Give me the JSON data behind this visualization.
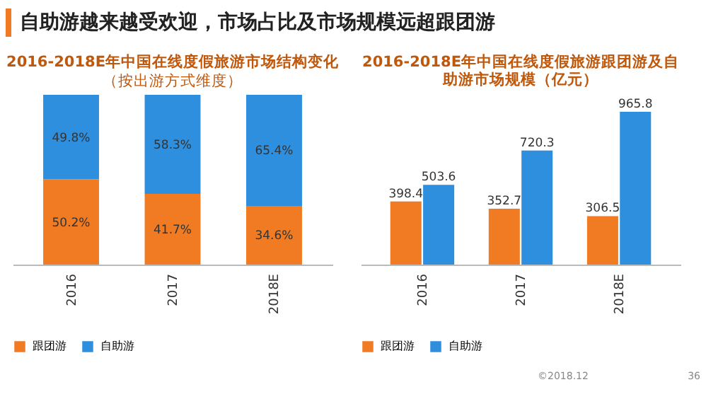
{
  "chart_data": [
    {
      "type": "other",
      "title": "自助游越来越受欢迎，市场占比及市场规模远超跟团游"
    },
    {
      "type": "bar",
      "title": "2016-2018E年中国在线度假旅游市场结构变化",
      "subtitle": "（按出游方式维度）",
      "categories": [
        "2016",
        "2017",
        "2018E"
      ],
      "stacked": true,
      "legend": "bottom",
      "series": [
        {
          "name": "跟团游",
          "color": "#f07b22",
          "values": [
            50.2,
            41.7,
            34.6
          ],
          "value_labels": [
            "50.2%",
            "41.7%",
            "34.6%"
          ]
        },
        {
          "name": "自助游",
          "color": "#2f8fdf",
          "values": [
            49.8,
            58.3,
            65.4
          ],
          "value_labels": [
            "49.8%",
            "58.3%",
            "65.4%"
          ]
        }
      ]
    },
    {
      "type": "bar",
      "title": "2016-2018E年中国在线度假旅游跟团游及自助游市场规模（亿元）",
      "categories": [
        "2016",
        "2017",
        "2018E"
      ],
      "data_labels": true,
      "legend": "bottom",
      "annotations": [
        "©2018.12",
        "36"
      ],
      "series": [
        {
          "name": "跟团游",
          "color": "#f07b22",
          "values": [
            398.4,
            352.7,
            306.5
          ]
        },
        {
          "name": "自助游",
          "color": "#2f8fdf",
          "values": [
            503.6,
            720.3,
            965.8
          ]
        }
      ]
    }
  ]
}
